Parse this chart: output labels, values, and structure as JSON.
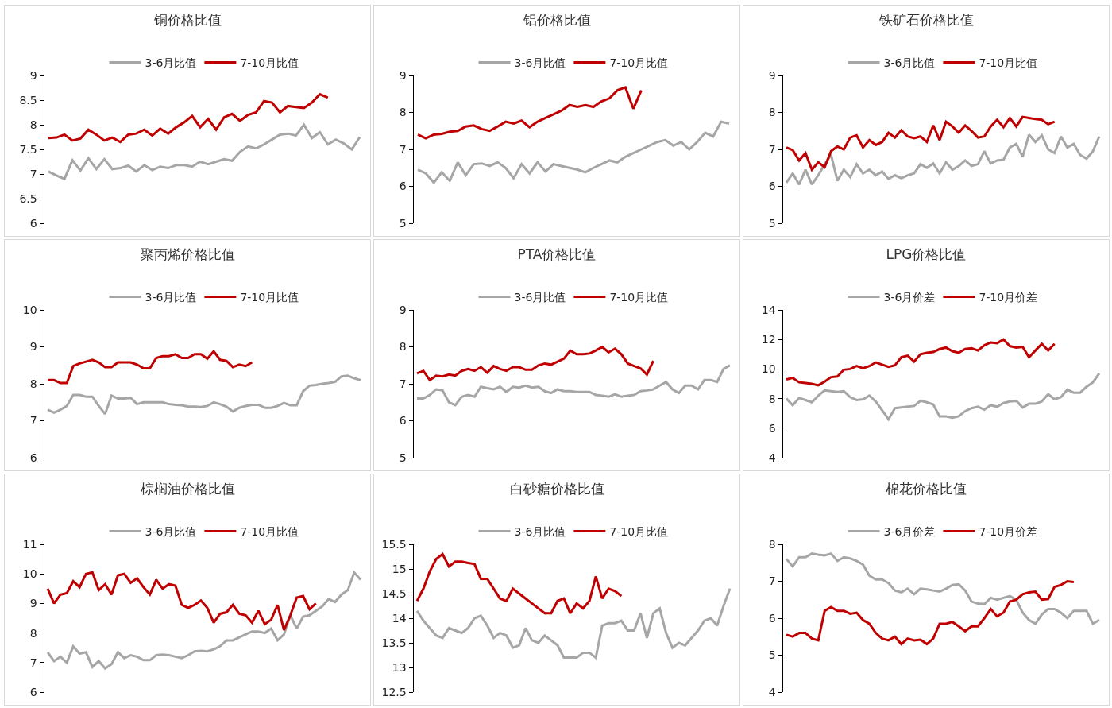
{
  "chart_data": [
    {
      "type": "line",
      "title": "铜价格比值",
      "legend": "top",
      "grid": false,
      "tick_labels": "y",
      "ylim": [
        6,
        9
      ],
      "yticks": [
        6,
        {
          "value": 6.5,
          "label": "6.5"
        },
        7,
        {
          "value": 7.5,
          "label": "7.5"
        },
        8,
        {
          "value": 8.5,
          "label": "8.5"
        },
        9
      ],
      "categories": [
        null,
        null,
        null,
        null,
        null,
        null,
        null,
        null,
        null,
        null,
        null,
        null,
        null,
        null,
        null,
        null,
        null,
        null,
        null,
        null,
        null,
        null,
        null,
        null,
        null,
        null,
        null,
        null,
        null,
        null,
        null,
        null,
        null,
        null,
        null,
        null,
        null,
        null,
        null,
        null
      ],
      "series": [
        {
          "name": "3-6月比值",
          "color": "#a6a6a6",
          "values": [
            7.05,
            6.97,
            6.9,
            7.28,
            7.07,
            7.32,
            7.1,
            7.3,
            7.1,
            7.12,
            7.17,
            7.05,
            7.18,
            7.08,
            7.15,
            7.12,
            7.18,
            7.18,
            7.15,
            7.25,
            7.2,
            7.25,
            7.3,
            7.27,
            7.45,
            7.56,
            7.52,
            7.6,
            7.7,
            7.8,
            7.82,
            7.78,
            8.0,
            7.73,
            7.85,
            7.6,
            7.7,
            7.62,
            7.5,
            7.75
          ]
        },
        {
          "name": "7-10月比值",
          "color": "#c00000",
          "values": [
            7.73,
            7.74,
            7.8,
            7.68,
            7.72,
            7.9,
            7.8,
            7.68,
            7.74,
            7.65,
            7.8,
            7.82,
            7.9,
            7.78,
            7.92,
            7.82,
            7.95,
            8.05,
            8.18,
            7.95,
            8.12,
            7.9,
            8.15,
            8.22,
            8.08,
            8.2,
            8.25,
            8.48,
            8.45,
            8.25,
            8.38,
            8.36,
            8.34,
            8.45,
            8.62,
            8.55,
            null,
            null,
            null,
            null
          ]
        }
      ]
    },
    {
      "type": "line",
      "title": "铝价格比值",
      "legend": "top",
      "grid": false,
      "tick_labels": "y",
      "ylim": [
        5,
        9
      ],
      "yticks": [
        5,
        6,
        7,
        8,
        9
      ],
      "categories": [
        null,
        null,
        null,
        null,
        null,
        null,
        null,
        null,
        null,
        null,
        null,
        null,
        null,
        null,
        null,
        null,
        null,
        null,
        null,
        null,
        null,
        null,
        null,
        null,
        null,
        null,
        null,
        null,
        null,
        null,
        null,
        null,
        null,
        null,
        null,
        null,
        null,
        null,
        null,
        null
      ],
      "series": [
        {
          "name": "3-6月比值",
          "color": "#a6a6a6",
          "values": [
            6.45,
            6.35,
            6.1,
            6.38,
            6.15,
            6.65,
            6.3,
            6.6,
            6.62,
            6.55,
            6.65,
            6.5,
            6.22,
            6.6,
            6.35,
            6.65,
            6.4,
            6.6,
            6.55,
            6.5,
            6.45,
            6.38,
            6.5,
            6.6,
            6.7,
            6.65,
            6.8,
            6.9,
            7.0,
            7.1,
            7.2,
            7.25,
            7.1,
            7.2,
            7.0,
            7.2,
            7.45,
            7.35,
            7.75,
            7.7
          ]
        },
        {
          "name": "7-10月比值",
          "color": "#c00000",
          "values": [
            7.4,
            7.3,
            7.4,
            7.42,
            7.48,
            7.5,
            7.62,
            7.65,
            7.55,
            7.5,
            7.62,
            7.75,
            7.7,
            7.78,
            7.6,
            7.75,
            7.85,
            7.95,
            8.05,
            8.2,
            8.15,
            8.2,
            8.15,
            8.3,
            8.38,
            8.6,
            8.68,
            8.1,
            8.6,
            null,
            null,
            null,
            null,
            null,
            null,
            null,
            null,
            null,
            null,
            null
          ]
        }
      ]
    },
    {
      "type": "line",
      "title": "铁矿石价格比值",
      "legend": "top",
      "grid": false,
      "tick_labels": "y",
      "ylim": [
        5,
        9
      ],
      "yticks": [
        5,
        6,
        7,
        8,
        9
      ],
      "categories": [
        null,
        null,
        null,
        null,
        null,
        null,
        null,
        null,
        null,
        null,
        null,
        null,
        null,
        null,
        null,
        null,
        null,
        null,
        null,
        null,
        null,
        null,
        null,
        null,
        null,
        null,
        null,
        null,
        null,
        null,
        null,
        null,
        null,
        null,
        null,
        null,
        null,
        null,
        null,
        null,
        null,
        null,
        null,
        null,
        null,
        null,
        null,
        null,
        null,
        null
      ],
      "series": [
        {
          "name": "3-6月比值",
          "color": "#a6a6a6",
          "values": [
            6.1,
            6.35,
            6.05,
            6.45,
            6.05,
            6.3,
            6.6,
            6.85,
            6.15,
            6.45,
            6.25,
            6.6,
            6.35,
            6.45,
            6.3,
            6.4,
            6.2,
            6.3,
            6.22,
            6.3,
            6.35,
            6.6,
            6.5,
            6.62,
            6.35,
            6.65,
            6.45,
            6.55,
            6.7,
            6.55,
            6.6,
            6.95,
            6.62,
            6.7,
            6.72,
            7.05,
            7.15,
            6.8,
            7.4,
            7.2,
            7.38,
            7.0,
            6.9,
            7.35,
            7.05,
            7.15,
            6.85,
            6.75,
            6.95,
            7.35
          ]
        },
        {
          "name": "7-10月比值",
          "color": "#c00000",
          "values": [
            7.05,
            6.98,
            6.7,
            6.9,
            6.45,
            6.65,
            6.52,
            6.95,
            7.08,
            7.0,
            7.32,
            7.38,
            7.05,
            7.25,
            7.12,
            7.2,
            7.45,
            7.32,
            7.52,
            7.35,
            7.3,
            7.35,
            7.2,
            7.65,
            7.25,
            7.75,
            7.62,
            7.45,
            7.65,
            7.5,
            7.32,
            7.35,
            7.62,
            7.8,
            7.6,
            7.85,
            7.62,
            7.88,
            7.85,
            7.82,
            7.8,
            7.68,
            7.75,
            null,
            null,
            null,
            null,
            null,
            null,
            null
          ]
        }
      ]
    },
    {
      "type": "line",
      "title": "聚丙烯价格比值",
      "legend": "top",
      "grid": false,
      "tick_labels": "y",
      "ylim": [
        6,
        10
      ],
      "yticks": [
        6,
        7,
        8,
        9,
        10
      ],
      "categories": [
        null,
        null,
        null,
        null,
        null,
        null,
        null,
        null,
        null,
        null,
        null,
        null,
        null,
        null,
        null,
        null,
        null,
        null,
        null,
        null,
        null,
        null,
        null,
        null,
        null,
        null,
        null,
        null,
        null,
        null,
        null,
        null,
        null,
        null,
        null,
        null,
        null,
        null,
        null,
        null,
        null,
        null,
        null,
        null,
        null,
        null,
        null,
        null,
        null,
        null
      ],
      "series": [
        {
          "name": "3-6月比值",
          "color": "#a6a6a6",
          "values": [
            7.3,
            7.22,
            7.3,
            7.4,
            7.7,
            7.7,
            7.65,
            7.65,
            7.4,
            7.18,
            7.68,
            7.6,
            7.6,
            7.62,
            7.45,
            7.5,
            7.5,
            7.5,
            7.5,
            7.45,
            7.43,
            7.42,
            7.38,
            7.38,
            7.37,
            7.4,
            7.5,
            7.45,
            7.38,
            7.25,
            7.35,
            7.4,
            7.43,
            7.43,
            7.35,
            7.35,
            7.4,
            7.48,
            7.42,
            7.42,
            7.8,
            7.95,
            7.97,
            8.0,
            8.02,
            8.05,
            8.2,
            8.22,
            8.15,
            8.1
          ]
        },
        {
          "name": "7-10月比值",
          "color": "#c00000",
          "values": [
            8.1,
            8.1,
            8.02,
            8.02,
            8.48,
            8.55,
            8.6,
            8.65,
            8.58,
            8.45,
            8.45,
            8.58,
            8.58,
            8.58,
            8.52,
            8.42,
            8.42,
            8.7,
            8.75,
            8.75,
            8.8,
            8.7,
            8.7,
            8.8,
            8.8,
            8.68,
            8.88,
            8.65,
            8.62,
            8.45,
            8.52,
            8.48,
            8.58,
            null,
            null,
            null,
            null,
            null,
            null,
            null,
            null,
            null,
            null,
            null,
            null,
            null,
            null,
            null,
            null,
            null
          ]
        }
      ]
    },
    {
      "type": "line",
      "title": "PTA价格比值",
      "legend": "top",
      "grid": false,
      "tick_labels": "y",
      "ylim": [
        5,
        9
      ],
      "yticks": [
        5,
        6,
        7,
        8,
        9
      ],
      "categories": [
        null,
        null,
        null,
        null,
        null,
        null,
        null,
        null,
        null,
        null,
        null,
        null,
        null,
        null,
        null,
        null,
        null,
        null,
        null,
        null,
        null,
        null,
        null,
        null,
        null,
        null,
        null,
        null,
        null,
        null,
        null,
        null,
        null,
        null,
        null,
        null,
        null,
        null,
        null,
        null,
        null,
        null,
        null,
        null,
        null,
        null,
        null,
        null,
        null,
        null
      ],
      "series": [
        {
          "name": "3-6月比值",
          "color": "#a6a6a6",
          "values": [
            6.6,
            6.6,
            6.7,
            6.85,
            6.82,
            6.5,
            6.42,
            6.65,
            6.7,
            6.65,
            6.92,
            6.88,
            6.85,
            6.92,
            6.78,
            6.92,
            6.9,
            6.95,
            6.9,
            6.92,
            6.8,
            6.75,
            6.85,
            6.8,
            6.8,
            6.78,
            6.78,
            6.78,
            6.7,
            6.68,
            6.65,
            6.72,
            6.65,
            6.68,
            6.7,
            6.8,
            6.82,
            6.85,
            6.95,
            7.05,
            6.85,
            6.75,
            6.95,
            6.95,
            6.85,
            7.1,
            7.1,
            7.05,
            7.4,
            7.5
          ]
        },
        {
          "name": "7-10月比值",
          "color": "#c00000",
          "values": [
            7.28,
            7.35,
            7.1,
            7.22,
            7.2,
            7.25,
            7.22,
            7.35,
            7.4,
            7.35,
            7.45,
            7.3,
            7.48,
            7.4,
            7.35,
            7.45,
            7.45,
            7.38,
            7.38,
            7.5,
            7.55,
            7.52,
            7.6,
            7.68,
            7.9,
            7.8,
            7.8,
            7.82,
            7.9,
            8.0,
            7.85,
            7.95,
            7.8,
            7.55,
            7.48,
            7.42,
            7.25,
            7.62,
            null,
            null,
            null,
            null,
            null,
            null,
            null,
            null,
            null,
            null,
            null,
            null
          ]
        }
      ]
    },
    {
      "type": "line",
      "title": "LPG价格比值",
      "legend": "top",
      "grid": false,
      "tick_labels": "y",
      "ylim": [
        4,
        14
      ],
      "yticks": [
        4,
        6,
        8,
        10,
        12,
        14
      ],
      "categories": [
        null,
        null,
        null,
        null,
        null,
        null,
        null,
        null,
        null,
        null,
        null,
        null,
        null,
        null,
        null,
        null,
        null,
        null,
        null,
        null,
        null,
        null,
        null,
        null,
        null,
        null,
        null,
        null,
        null,
        null,
        null,
        null,
        null,
        null,
        null,
        null,
        null,
        null,
        null,
        null,
        null,
        null,
        null,
        null,
        null,
        null,
        null,
        null,
        null,
        null
      ],
      "series": [
        {
          "name": "3-6月价差",
          "color": "#a6a6a6",
          "values": [
            8.0,
            7.55,
            8.05,
            7.9,
            7.75,
            8.2,
            8.55,
            8.5,
            8.45,
            8.5,
            8.1,
            7.9,
            7.95,
            8.2,
            7.8,
            7.2,
            6.6,
            7.35,
            7.4,
            7.45,
            7.5,
            7.85,
            7.75,
            7.6,
            6.8,
            6.8,
            6.7,
            6.8,
            7.15,
            7.35,
            7.45,
            7.25,
            7.55,
            7.45,
            7.7,
            7.8,
            7.85,
            7.4,
            7.65,
            7.65,
            7.8,
            8.3,
            7.95,
            8.1,
            8.6,
            8.4,
            8.4,
            8.8,
            9.1,
            9.7
          ]
        },
        {
          "name": "7-10月价差",
          "color": "#c00000",
          "values": [
            9.3,
            9.4,
            9.1,
            9.05,
            9.0,
            8.9,
            9.15,
            9.45,
            9.5,
            9.95,
            10.0,
            10.2,
            10.05,
            10.2,
            10.45,
            10.3,
            10.15,
            10.25,
            10.8,
            10.9,
            10.5,
            11.0,
            11.1,
            11.15,
            11.35,
            11.45,
            11.2,
            11.1,
            11.35,
            11.4,
            11.25,
            11.6,
            11.8,
            11.75,
            12.0,
            11.55,
            11.45,
            11.5,
            10.8,
            11.25,
            11.7,
            11.25,
            11.7,
            null,
            null,
            null,
            null,
            null,
            null,
            null
          ]
        }
      ]
    },
    {
      "type": "line",
      "title": "棕榈油价格比值",
      "legend": "top",
      "grid": false,
      "tick_labels": "y",
      "ylim": [
        6,
        11
      ],
      "yticks": [
        6,
        7,
        8,
        9,
        10,
        11
      ],
      "categories": [
        null,
        null,
        null,
        null,
        null,
        null,
        null,
        null,
        null,
        null,
        null,
        null,
        null,
        null,
        null,
        null,
        null,
        null,
        null,
        null,
        null,
        null,
        null,
        null,
        null,
        null,
        null,
        null,
        null,
        null,
        null,
        null,
        null,
        null,
        null,
        null,
        null,
        null,
        null,
        null,
        null,
        null,
        null,
        null,
        null,
        null,
        null,
        null,
        null,
        null
      ],
      "series": [
        {
          "name": "3-6月比值",
          "color": "#a6a6a6",
          "values": [
            7.35,
            7.05,
            7.2,
            7.0,
            7.55,
            7.3,
            7.35,
            6.85,
            7.05,
            6.8,
            6.95,
            7.35,
            7.15,
            7.25,
            7.2,
            7.08,
            7.08,
            7.25,
            7.27,
            7.25,
            7.2,
            7.15,
            7.25,
            7.38,
            7.4,
            7.38,
            7.45,
            7.55,
            7.75,
            7.75,
            7.85,
            7.95,
            8.05,
            8.05,
            8.0,
            8.15,
            7.75,
            7.95,
            8.6,
            8.15,
            8.55,
            8.6,
            8.75,
            8.9,
            9.15,
            9.05,
            9.3,
            9.45,
            10.05,
            9.8
          ]
        },
        {
          "name": "7-10月比值",
          "color": "#c00000",
          "values": [
            9.5,
            9.0,
            9.3,
            9.35,
            9.75,
            9.55,
            10.0,
            10.05,
            9.45,
            9.65,
            9.3,
            9.95,
            10.0,
            9.7,
            9.85,
            9.55,
            9.3,
            9.8,
            9.5,
            9.65,
            9.6,
            8.95,
            8.85,
            8.95,
            9.1,
            8.85,
            8.35,
            8.65,
            8.7,
            8.95,
            8.65,
            8.6,
            8.35,
            8.75,
            8.3,
            8.45,
            8.95,
            8.1,
            8.6,
            9.2,
            9.25,
            8.8,
            9.0,
            null,
            null,
            null,
            null,
            null,
            null,
            null
          ]
        }
      ]
    },
    {
      "type": "line",
      "title": "白砂糖价格比值",
      "legend": "top",
      "grid": false,
      "tick_labels": "y",
      "ylim": [
        12.5,
        15.5
      ],
      "yticks": [
        {
          "value": 12.5,
          "label": "12.5"
        },
        13,
        {
          "value": 13.5,
          "label": "13.5"
        },
        14,
        {
          "value": 14.5,
          "label": "14.5"
        },
        15,
        {
          "value": 15.5,
          "label": "15.5"
        }
      ],
      "categories": [
        null,
        null,
        null,
        null,
        null,
        null,
        null,
        null,
        null,
        null,
        null,
        null,
        null,
        null,
        null,
        null,
        null,
        null,
        null,
        null,
        null,
        null,
        null,
        null,
        null,
        null,
        null,
        null,
        null,
        null,
        null,
        null,
        null,
        null,
        null,
        null,
        null,
        null,
        null,
        null,
        null,
        null,
        null,
        null,
        null,
        null,
        null,
        null,
        null,
        null
      ],
      "series": [
        {
          "name": "3-6月比值",
          "color": "#a6a6a6",
          "values": [
            14.15,
            13.95,
            13.8,
            13.65,
            13.6,
            13.8,
            13.75,
            13.7,
            13.8,
            14.0,
            14.05,
            13.85,
            13.6,
            13.7,
            13.65,
            13.4,
            13.45,
            13.8,
            13.55,
            13.5,
            13.65,
            13.55,
            13.45,
            13.2,
            13.2,
            13.2,
            13.3,
            13.3,
            13.2,
            13.85,
            13.9,
            13.9,
            13.95,
            13.75,
            13.75,
            14.1,
            13.6,
            14.1,
            14.2,
            13.7,
            13.4,
            13.5,
            13.45,
            13.6,
            13.75,
            13.95,
            14.0,
            13.85,
            14.25,
            14.6
          ]
        },
        {
          "name": "7-10月比值",
          "color": "#c00000",
          "values": [
            14.35,
            14.6,
            14.95,
            15.2,
            15.3,
            15.05,
            15.15,
            15.15,
            15.12,
            15.1,
            14.8,
            14.8,
            14.6,
            14.4,
            14.35,
            14.6,
            14.5,
            14.4,
            14.3,
            14.2,
            14.1,
            14.1,
            14.35,
            14.4,
            14.1,
            14.3,
            14.2,
            14.35,
            14.85,
            14.4,
            14.6,
            14.55,
            14.45,
            null,
            null,
            null,
            null,
            null,
            null,
            null,
            null,
            null,
            null,
            null,
            null,
            null,
            null,
            null,
            null,
            null
          ]
        }
      ]
    },
    {
      "type": "line",
      "title": "棉花价格比值",
      "legend": "top",
      "grid": false,
      "tick_labels": "y",
      "ylim": [
        4,
        8
      ],
      "yticks": [
        4,
        5,
        6,
        7,
        8
      ],
      "categories": [
        null,
        null,
        null,
        null,
        null,
        null,
        null,
        null,
        null,
        null,
        null,
        null,
        null,
        null,
        null,
        null,
        null,
        null,
        null,
        null,
        null,
        null,
        null,
        null,
        null,
        null,
        null,
        null,
        null,
        null,
        null,
        null,
        null,
        null,
        null,
        null,
        null,
        null,
        null,
        null,
        null,
        null,
        null,
        null,
        null,
        null,
        null,
        null,
        null,
        null
      ],
      "series": [
        {
          "name": "3-6月价差",
          "color": "#a6a6a6",
          "values": [
            7.6,
            7.4,
            7.65,
            7.65,
            7.75,
            7.72,
            7.7,
            7.75,
            7.55,
            7.65,
            7.62,
            7.55,
            7.45,
            7.15,
            7.05,
            7.05,
            6.95,
            6.75,
            6.7,
            6.8,
            6.65,
            6.8,
            6.78,
            6.75,
            6.72,
            6.8,
            6.9,
            6.92,
            6.75,
            6.45,
            6.4,
            6.38,
            6.55,
            6.5,
            6.55,
            6.6,
            6.5,
            6.15,
            5.95,
            5.85,
            6.1,
            6.25,
            6.25,
            6.15,
            6.0,
            6.2,
            6.2,
            6.2,
            5.85,
            5.95
          ]
        },
        {
          "name": "7-10月价差",
          "color": "#c00000",
          "values": [
            5.55,
            5.5,
            5.6,
            5.6,
            5.45,
            5.4,
            6.2,
            6.3,
            6.2,
            6.2,
            6.12,
            6.15,
            5.95,
            5.85,
            5.6,
            5.45,
            5.4,
            5.5,
            5.3,
            5.45,
            5.4,
            5.42,
            5.3,
            5.45,
            5.85,
            5.85,
            5.9,
            5.78,
            5.65,
            5.78,
            5.78,
            6.0,
            6.25,
            6.05,
            6.15,
            6.45,
            6.5,
            6.65,
            6.7,
            6.72,
            6.5,
            6.52,
            6.85,
            6.9,
            7.0,
            6.98,
            null,
            null,
            null,
            null
          ]
        }
      ]
    }
  ]
}
